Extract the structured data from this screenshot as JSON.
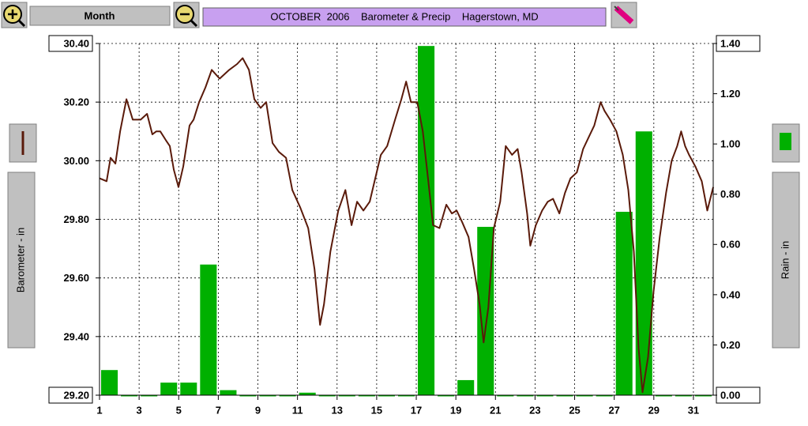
{
  "toolbar": {
    "zoom_label": "Month"
  },
  "chart_data": {
    "type": "line",
    "title": "OCTOBER  2006    Barometer & Precip    Hagerstown, MD",
    "y_label": "Barometer - in",
    "y2_label": "Rain - in",
    "xlim": [
      1,
      32
    ],
    "xticks": [
      1,
      3,
      5,
      7,
      9,
      11,
      13,
      15,
      17,
      19,
      21,
      23,
      25,
      27,
      29,
      31
    ],
    "ylim": [
      29.2,
      30.4
    ],
    "yticks": [
      {
        "value": 29.2,
        "label": "29.20"
      },
      {
        "value": 29.4,
        "label": "29.40"
      },
      {
        "value": 29.6,
        "label": "29.60"
      },
      {
        "value": 29.8,
        "label": "29.80"
      },
      {
        "value": 30.0,
        "label": "30.00"
      },
      {
        "value": 30.2,
        "label": "30.20"
      },
      {
        "value": 30.4,
        "label": "30.40"
      }
    ],
    "y2lim": [
      0,
      1.4
    ],
    "y2ticks": [
      {
        "value": 0,
        "label": "0.00"
      },
      {
        "value": 0.2,
        "label": "0.20"
      },
      {
        "value": 0.4,
        "label": "0.40"
      },
      {
        "value": 0.6,
        "label": "0.60"
      },
      {
        "value": 0.8,
        "label": "0.80"
      },
      {
        "value": 1.0,
        "label": "1.00"
      },
      {
        "value": 1.2,
        "label": "1.20"
      },
      {
        "value": 1.4,
        "label": "1.40"
      }
    ],
    "grid": true,
    "series": [
      {
        "name": "Barometer",
        "type": "line",
        "color": "#5a1a0a",
        "x": [
          1,
          1.36,
          1.56,
          1.8,
          2.04,
          2.36,
          2.68,
          3.08,
          3.4,
          3.67,
          3.87,
          4.07,
          4.35,
          4.55,
          4.75,
          4.99,
          5.23,
          5.55,
          5.75,
          6.03,
          6.35,
          6.67,
          7.07,
          7.55,
          7.95,
          8.23,
          8.55,
          8.82,
          9.14,
          9.42,
          9.74,
          10.06,
          10.42,
          10.74,
          11.14,
          11.54,
          11.86,
          12.14,
          12.34,
          12.66,
          13.06,
          13.42,
          13.73,
          14.01,
          14.33,
          14.65,
          14.93,
          15.21,
          15.53,
          15.93,
          16.25,
          16.49,
          16.73,
          17.05,
          17.33,
          17.61,
          17.85,
          18.17,
          18.52,
          18.8,
          19.04,
          19.32,
          19.64,
          19.92,
          20.2,
          20.4,
          20.64,
          20.92,
          21.24,
          21.52,
          21.84,
          22.12,
          22.32,
          22.6,
          22.76,
          23.04,
          23.36,
          23.64,
          23.91,
          24.23,
          24.51,
          24.79,
          25.11,
          25.43,
          25.71,
          25.99,
          26.31,
          26.51,
          26.79,
          27.11,
          27.43,
          27.71,
          27.99,
          28.23,
          28.43,
          28.71,
          28.98,
          29.3,
          29.62,
          29.9,
          30.18,
          30.38,
          30.58,
          30.78,
          31.1,
          31.42,
          31.7,
          32
        ],
        "values": [
          29.94,
          29.93,
          30.01,
          29.99,
          30.1,
          30.21,
          30.14,
          30.14,
          30.16,
          30.09,
          30.1,
          30.1,
          30.07,
          30.05,
          29.97,
          29.91,
          29.98,
          30.12,
          30.14,
          30.2,
          30.25,
          30.31,
          30.28,
          30.31,
          30.33,
          30.35,
          30.31,
          30.21,
          30.18,
          30.2,
          30.06,
          30.03,
          30.01,
          29.9,
          29.84,
          29.77,
          29.63,
          29.44,
          29.51,
          29.69,
          29.83,
          29.9,
          29.78,
          29.86,
          29.83,
          29.86,
          29.94,
          30.02,
          30.05,
          30.14,
          30.21,
          30.27,
          30.2,
          30.2,
          30.1,
          29.93,
          29.78,
          29.77,
          29.85,
          29.82,
          29.83,
          29.79,
          29.74,
          29.63,
          29.51,
          29.38,
          29.5,
          29.77,
          29.86,
          30.05,
          30.02,
          30.04,
          29.96,
          29.82,
          29.71,
          29.78,
          29.83,
          29.86,
          29.87,
          29.82,
          29.89,
          29.94,
          29.96,
          30.04,
          30.08,
          30.12,
          30.2,
          30.17,
          30.14,
          30.1,
          30.02,
          29.9,
          29.69,
          29.36,
          29.21,
          29.33,
          29.55,
          29.74,
          29.89,
          30.0,
          30.05,
          30.1,
          30.05,
          30.02,
          29.98,
          29.93,
          29.83,
          29.91
        ]
      },
      {
        "name": "Rain",
        "type": "bar",
        "axis": "y2",
        "color": "#00b000",
        "x": [
          1,
          2,
          3,
          4,
          5,
          6,
          7,
          8,
          9,
          10,
          11,
          12,
          13,
          14,
          15,
          16,
          17,
          18,
          19,
          20,
          21,
          22,
          23,
          24,
          25,
          26,
          27,
          28,
          29,
          30,
          31
        ],
        "values": [
          0.1,
          0,
          0,
          0.05,
          0.05,
          0.52,
          0.02,
          0,
          0,
          0,
          0.01,
          0,
          0,
          0,
          0,
          0,
          1.39,
          0,
          0.06,
          0.67,
          0,
          0,
          0,
          0,
          0,
          0,
          0.73,
          1.05,
          0,
          0,
          0
        ]
      }
    ]
  }
}
